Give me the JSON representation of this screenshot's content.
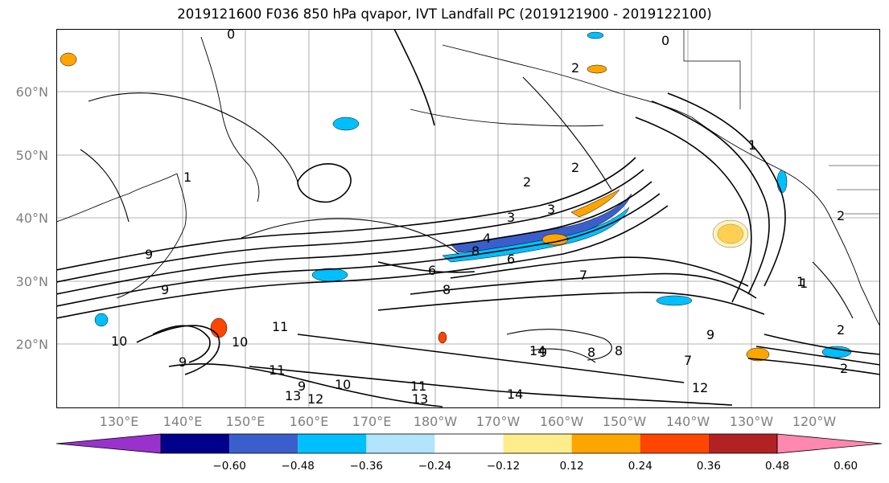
{
  "title": "2019121600 F036 850 hPa qvapor, IVT Landfall PC (2019121900 - 2019122100)",
  "lat_labels": [
    "60°N",
    "50°N",
    "40°N",
    "30°N",
    "20°N"
  ],
  "lon_labels": [
    "130°E",
    "140°E",
    "150°E",
    "160°E",
    "170°E",
    "180°W",
    "170°W",
    "160°W",
    "150°W",
    "140°W",
    "130°W",
    "120°W"
  ],
  "contour_labels": [
    "0",
    "0",
    "2",
    "1",
    "1",
    "2",
    "3",
    "3",
    "4",
    "8",
    "6",
    "8",
    "6",
    "7",
    "1",
    "2",
    "9",
    "9",
    "10",
    "11",
    "10",
    "11",
    "9",
    "9",
    "10",
    "13",
    "12",
    "11",
    "13",
    "14",
    "14",
    "9",
    "8",
    "8",
    "7",
    "9",
    "12",
    "2",
    "1",
    "2",
    "2"
  ],
  "colorbar": {
    "colors": [
      "#9932cc",
      "#00008b",
      "#3a5fcd",
      "#00bfff",
      "#b2e4fb",
      "#ffffff",
      "#ffec8b",
      "#ffa500",
      "#ff4500",
      "#b22222",
      "#ff87b0"
    ],
    "tick_labels": [
      "−0.60",
      "−0.48",
      "−0.36",
      "−0.24",
      "−0.12",
      "0.12",
      "0.24",
      "0.36",
      "0.48",
      "0.60"
    ]
  }
}
